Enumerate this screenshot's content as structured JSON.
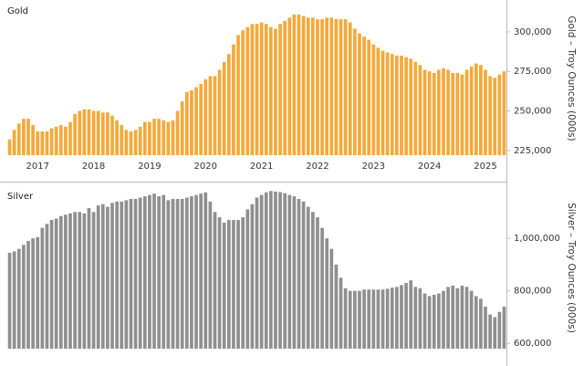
{
  "chart_data": [
    {
      "type": "bar",
      "title": "Gold",
      "y_label": "Gold – Troy Ounces (000s)",
      "color": "#f4a93a",
      "categories": [
        null,
        null,
        null,
        null,
        null,
        null,
        "2017",
        null,
        null,
        null,
        null,
        null,
        null,
        null,
        null,
        null,
        null,
        null,
        "2018",
        null,
        null,
        null,
        null,
        null,
        null,
        null,
        null,
        null,
        null,
        null,
        "2019",
        null,
        null,
        null,
        null,
        null,
        null,
        null,
        null,
        null,
        null,
        null,
        "2020",
        null,
        null,
        null,
        null,
        null,
        null,
        null,
        null,
        null,
        null,
        null,
        "2021",
        null,
        null,
        null,
        null,
        null,
        null,
        null,
        null,
        null,
        null,
        null,
        "2022",
        null,
        null,
        null,
        null,
        null,
        null,
        null,
        null,
        null,
        null,
        null,
        "2023",
        null,
        null,
        null,
        null,
        null,
        null,
        null,
        null,
        null,
        null,
        null,
        "2024",
        null,
        null,
        null,
        null,
        null,
        null,
        null,
        null,
        null,
        null,
        null,
        "2025",
        null,
        null,
        null,
        null
      ],
      "values": [
        232000,
        238000,
        242000,
        245000,
        245000,
        241000,
        237000,
        237000,
        237000,
        239000,
        240000,
        241000,
        240000,
        243000,
        248000,
        250000,
        251000,
        251000,
        250000,
        250000,
        249000,
        249000,
        247000,
        244000,
        241000,
        238000,
        237000,
        238000,
        240000,
        243000,
        243000,
        245000,
        245000,
        244000,
        243000,
        244000,
        250000,
        256000,
        262000,
        263000,
        265000,
        267000,
        270000,
        272000,
        272000,
        276000,
        281000,
        286000,
        292000,
        298000,
        301000,
        303000,
        305000,
        305000,
        306000,
        305000,
        303000,
        302000,
        305000,
        307000,
        309000,
        311000,
        311000,
        310000,
        309000,
        309000,
        308000,
        308000,
        309000,
        309000,
        308000,
        308000,
        308000,
        306000,
        302000,
        299000,
        297000,
        295000,
        292000,
        290000,
        288000,
        287000,
        286000,
        285000,
        285000,
        284000,
        283000,
        281000,
        279000,
        276000,
        275000,
        274000,
        276000,
        277000,
        276000,
        274000,
        274000,
        273000,
        276000,
        278000,
        280000,
        279000,
        276000,
        272000,
        271000,
        273000,
        275000
      ],
      "ylim": [
        222000,
        319000
      ],
      "yticks": [
        {
          "value": 225000,
          "label": "225,000"
        },
        {
          "value": 250000,
          "label": "250,000"
        },
        {
          "value": 275000,
          "label": "275,000"
        },
        {
          "value": 300000,
          "label": "300,000"
        }
      ]
    },
    {
      "type": "bar",
      "title": "Silver",
      "y_label": "Silver – Troy Ounces (000s)",
      "color": "#8f8f8f",
      "values": [
        945000,
        950000,
        960000,
        975000,
        990000,
        1000000,
        1005000,
        1040000,
        1055000,
        1070000,
        1075000,
        1085000,
        1090000,
        1095000,
        1100000,
        1100000,
        1095000,
        1115000,
        1100000,
        1125000,
        1130000,
        1120000,
        1135000,
        1140000,
        1140000,
        1145000,
        1150000,
        1150000,
        1155000,
        1160000,
        1165000,
        1170000,
        1160000,
        1165000,
        1145000,
        1150000,
        1150000,
        1150000,
        1155000,
        1160000,
        1165000,
        1170000,
        1175000,
        1140000,
        1100000,
        1080000,
        1060000,
        1070000,
        1070000,
        1070000,
        1080000,
        1110000,
        1130000,
        1155000,
        1165000,
        1175000,
        1180000,
        1178000,
        1176000,
        1172000,
        1165000,
        1160000,
        1150000,
        1140000,
        1120000,
        1100000,
        1080000,
        1040000,
        1000000,
        960000,
        900000,
        850000,
        810000,
        800000,
        800000,
        800000,
        805000,
        805000,
        805000,
        805000,
        805000,
        808000,
        812000,
        815000,
        822000,
        830000,
        840000,
        815000,
        810000,
        790000,
        780000,
        785000,
        790000,
        800000,
        815000,
        820000,
        810000,
        820000,
        815000,
        800000,
        780000,
        770000,
        740000,
        710000,
        700000,
        720000,
        740000
      ],
      "ylim": [
        580000,
        1195000
      ],
      "yticks": [
        {
          "value": 600000,
          "label": "600,000"
        },
        {
          "value": 800000,
          "label": "800,000"
        },
        {
          "value": 1000000,
          "label": "1,000,000"
        }
      ]
    }
  ]
}
